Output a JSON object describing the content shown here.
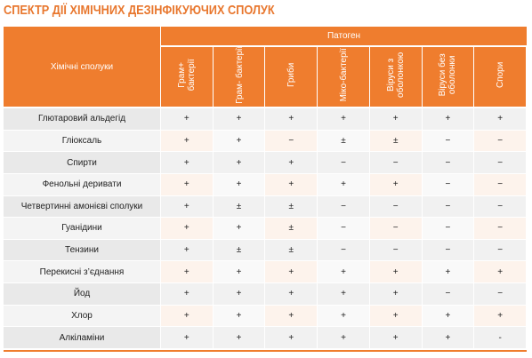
{
  "title": "СПЕКТР ДІЇ ХІМІЧНИХ ДЕЗІНФІКУЮЧИХ СПОЛУК",
  "table": {
    "corner": "Хімічні сполуки",
    "group_header": "Патоген",
    "columns": [
      "Грам+ бактерії",
      "Грам- бактерії",
      "Гриби",
      "Міко-бактерії",
      "Віруси з оболонкою",
      "Віруси без оболонки",
      "Спори"
    ],
    "rows": [
      [
        "Глютаровий альдегід",
        "+",
        "+",
        "+",
        "+",
        "+",
        "+",
        "+"
      ],
      [
        "Гліоксаль",
        "+",
        "+",
        "−",
        "±",
        "±",
        "−",
        "−"
      ],
      [
        "Спирти",
        "+",
        "+",
        "+",
        "−",
        "−",
        "−",
        "−"
      ],
      [
        "Фенольні деривати",
        "+",
        "+",
        "+",
        "+",
        "+",
        "−",
        "−"
      ],
      [
        "Четвертинні амонієві сполуки",
        "+",
        "±",
        "±",
        "−",
        "−",
        "−",
        "−"
      ],
      [
        "Гуанідини",
        "+",
        "+",
        "±",
        "−",
        "−",
        "−",
        "−"
      ],
      [
        "Тензини",
        "+",
        "±",
        "±",
        "−",
        "−",
        "−",
        "−"
      ],
      [
        "Перекисні з’єднання",
        "+",
        "+",
        "+",
        "+",
        "+",
        "+",
        "+"
      ],
      [
        "Йод",
        "+",
        "+",
        "+",
        "+",
        "+",
        "−",
        "−"
      ],
      [
        "Хлор",
        "+",
        "+",
        "+",
        "+",
        "+",
        "+",
        "+"
      ],
      [
        "Алкіламіни",
        "+",
        "+",
        "+",
        "+",
        "+",
        "+",
        "-"
      ]
    ]
  }
}
